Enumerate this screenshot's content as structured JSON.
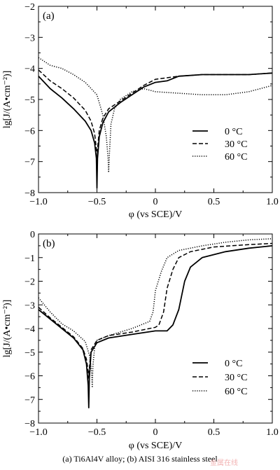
{
  "chart_data": [
    {
      "type": "line",
      "panel": "(a)",
      "xlabel": "φ (vs SCE)/V",
      "ylabel": "lg[J/(A•cm⁻²)]",
      "xlim": [
        -1.0,
        1.0
      ],
      "ylim": [
        -8,
        -2
      ],
      "xticks": [
        "−1.0",
        "−0.5",
        "0",
        "0.5",
        "1.0"
      ],
      "yticks": [
        "−8",
        "−7",
        "−6",
        "−5",
        "−4",
        "−3",
        "−2"
      ],
      "legend_position": "center-right",
      "series": [
        {
          "name": "0 °C",
          "style": "solid",
          "x": [
            -1.0,
            -0.9,
            -0.8,
            -0.7,
            -0.6,
            -0.55,
            -0.52,
            -0.505,
            -0.5,
            -0.495,
            -0.48,
            -0.45,
            -0.4,
            -0.3,
            -0.2,
            -0.1,
            0.0,
            0.1,
            0.2,
            0.4,
            0.6,
            0.8,
            1.0
          ],
          "y": [
            -4.25,
            -4.65,
            -4.95,
            -5.3,
            -5.7,
            -6.0,
            -6.4,
            -6.9,
            -7.85,
            -6.9,
            -6.2,
            -5.75,
            -5.4,
            -5.1,
            -4.85,
            -4.6,
            -4.45,
            -4.4,
            -4.25,
            -4.2,
            -4.2,
            -4.2,
            -4.15
          ]
        },
        {
          "name": "30 °C",
          "style": "dashed",
          "x": [
            -1.0,
            -0.9,
            -0.8,
            -0.7,
            -0.6,
            -0.55,
            -0.52,
            -0.505,
            -0.5,
            -0.495,
            -0.48,
            -0.45,
            -0.4,
            -0.3,
            -0.2,
            -0.1,
            0.0,
            0.1,
            0.2,
            0.4,
            0.6,
            0.8,
            1.0
          ],
          "y": [
            -4.05,
            -4.4,
            -4.65,
            -4.95,
            -5.35,
            -5.7,
            -6.1,
            -6.6,
            -7.75,
            -6.6,
            -6.0,
            -5.6,
            -5.3,
            -5.05,
            -4.8,
            -4.55,
            -4.35,
            -4.3,
            -4.25,
            -4.2,
            -4.2,
            -4.2,
            -4.15
          ]
        },
        {
          "name": "60 °C",
          "style": "dotted",
          "x": [
            -1.0,
            -0.9,
            -0.8,
            -0.7,
            -0.6,
            -0.5,
            -0.45,
            -0.42,
            -0.405,
            -0.4,
            -0.395,
            -0.38,
            -0.35,
            -0.3,
            -0.2,
            -0.1,
            0.0,
            0.2,
            0.4,
            0.6,
            0.8,
            1.0
          ],
          "y": [
            -3.65,
            -3.9,
            -4.0,
            -4.2,
            -4.45,
            -4.85,
            -5.5,
            -6.2,
            -6.9,
            -7.35,
            -6.9,
            -5.8,
            -5.3,
            -5.0,
            -4.75,
            -4.65,
            -4.75,
            -4.8,
            -4.85,
            -4.85,
            -4.75,
            -4.55
          ]
        }
      ]
    },
    {
      "type": "line",
      "panel": "(b)",
      "xlabel": "φ (vs SCE)/V",
      "ylabel": "lg[J/(A•cm⁻²)]",
      "xlim": [
        -1.0,
        1.0
      ],
      "ylim": [
        -8,
        0
      ],
      "xticks": [
        "−1.0",
        "−0.5",
        "0",
        "0.5",
        "1.0"
      ],
      "yticks": [
        "−8",
        "−7",
        "−6",
        "−5",
        "−4",
        "−3",
        "−2",
        "−1",
        "0"
      ],
      "legend_position": "center-right",
      "series": [
        {
          "name": "0 °C",
          "style": "solid",
          "x": [
            -1.0,
            -0.9,
            -0.8,
            -0.7,
            -0.62,
            -0.59,
            -0.575,
            -0.57,
            -0.565,
            -0.55,
            -0.5,
            -0.4,
            -0.2,
            0.0,
            0.1,
            0.15,
            0.2,
            0.25,
            0.3,
            0.4,
            0.6,
            0.8,
            1.0
          ],
          "y": [
            -3.2,
            -3.6,
            -4.0,
            -4.4,
            -4.9,
            -5.5,
            -6.4,
            -7.35,
            -6.1,
            -5.0,
            -4.6,
            -4.4,
            -4.25,
            -4.1,
            -4.1,
            -3.85,
            -3.2,
            -2.0,
            -1.4,
            -1.0,
            -0.75,
            -0.6,
            -0.5
          ]
        },
        {
          "name": "30 °C",
          "style": "dashed",
          "x": [
            -1.0,
            -0.9,
            -0.8,
            -0.7,
            -0.62,
            -0.59,
            -0.575,
            -0.57,
            -0.565,
            -0.55,
            -0.5,
            -0.4,
            -0.2,
            0.0,
            0.03,
            0.07,
            0.1,
            0.15,
            0.2,
            0.3,
            0.5,
            0.8,
            1.0
          ],
          "y": [
            -3.1,
            -3.55,
            -3.95,
            -4.35,
            -4.85,
            -5.3,
            -5.8,
            -6.1,
            -5.7,
            -4.9,
            -4.5,
            -4.3,
            -4.15,
            -3.95,
            -3.85,
            -3.3,
            -2.3,
            -1.5,
            -1.0,
            -0.75,
            -0.55,
            -0.45,
            -0.4
          ]
        },
        {
          "name": "60 °C",
          "style": "dotted",
          "x": [
            -1.0,
            -0.9,
            -0.8,
            -0.7,
            -0.6,
            -0.56,
            -0.545,
            -0.54,
            -0.535,
            -0.52,
            -0.5,
            -0.4,
            -0.2,
            -0.05,
            -0.02,
            0.0,
            0.05,
            0.1,
            0.2,
            0.4,
            0.6,
            0.8,
            1.0
          ],
          "y": [
            -2.7,
            -3.3,
            -3.8,
            -4.1,
            -4.55,
            -5.2,
            -5.9,
            -6.5,
            -5.6,
            -4.8,
            -4.5,
            -4.3,
            -4.0,
            -3.7,
            -3.3,
            -2.4,
            -1.6,
            -1.0,
            -0.7,
            -0.5,
            -0.35,
            -0.25,
            -0.2
          ]
        }
      ]
    }
  ],
  "caption": "(a) Ti6Al4V alloy; (b) AISI 316 stainless steel",
  "watermark": "金属在线"
}
